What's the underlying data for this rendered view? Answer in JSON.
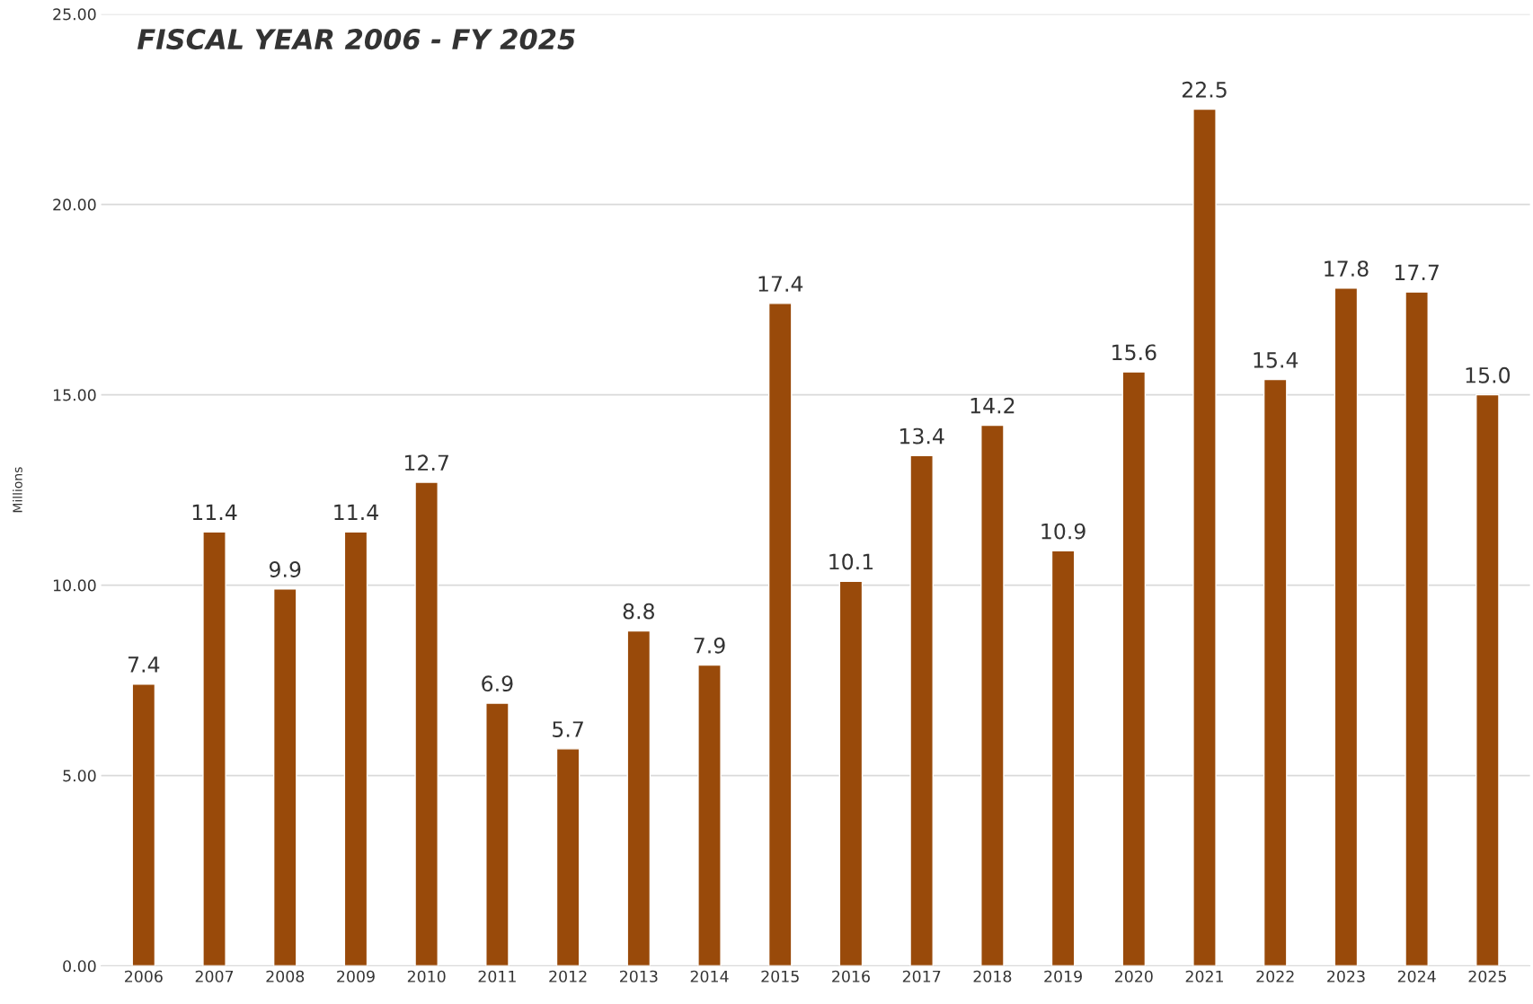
{
  "chart_data": {
    "type": "bar",
    "title": "FISCAL YEAR 2006 - FY 2025",
    "ylabel": "Millions",
    "categories": [
      "2006",
      "2007",
      "2008",
      "2009",
      "2010",
      "2011",
      "2012",
      "2013",
      "2014",
      "2015",
      "2016",
      "2017",
      "2018",
      "2019",
      "2020",
      "2021",
      "2022",
      "2023",
      "2024",
      "2025"
    ],
    "values": [
      7.4,
      11.4,
      9.9,
      11.4,
      12.7,
      6.9,
      5.7,
      8.8,
      7.9,
      17.4,
      10.1,
      13.4,
      14.2,
      10.9,
      15.6,
      22.5,
      15.4,
      17.8,
      17.7,
      15.0
    ],
    "value_labels": [
      "7.4",
      "11.4",
      "9.9",
      "11.4",
      "12.7",
      "6.9",
      "5.7",
      "8.8",
      "7.9",
      "17.4",
      "10.1",
      "13.4",
      "14.2",
      "10.9",
      "15.6",
      "22.5",
      "15.4",
      "17.8",
      "17.7",
      "15.0"
    ],
    "color": "#994a0a",
    "grid": "y",
    "ylim": [
      0,
      25
    ],
    "yticks": [
      {
        "value": 0,
        "label": "0.00"
      },
      {
        "value": 5,
        "label": "5.00"
      },
      {
        "value": 10,
        "label": "10.00"
      },
      {
        "value": 15,
        "label": "15.00"
      },
      {
        "value": 20,
        "label": "20.00"
      },
      {
        "value": 25,
        "label": "25.00"
      }
    ]
  }
}
